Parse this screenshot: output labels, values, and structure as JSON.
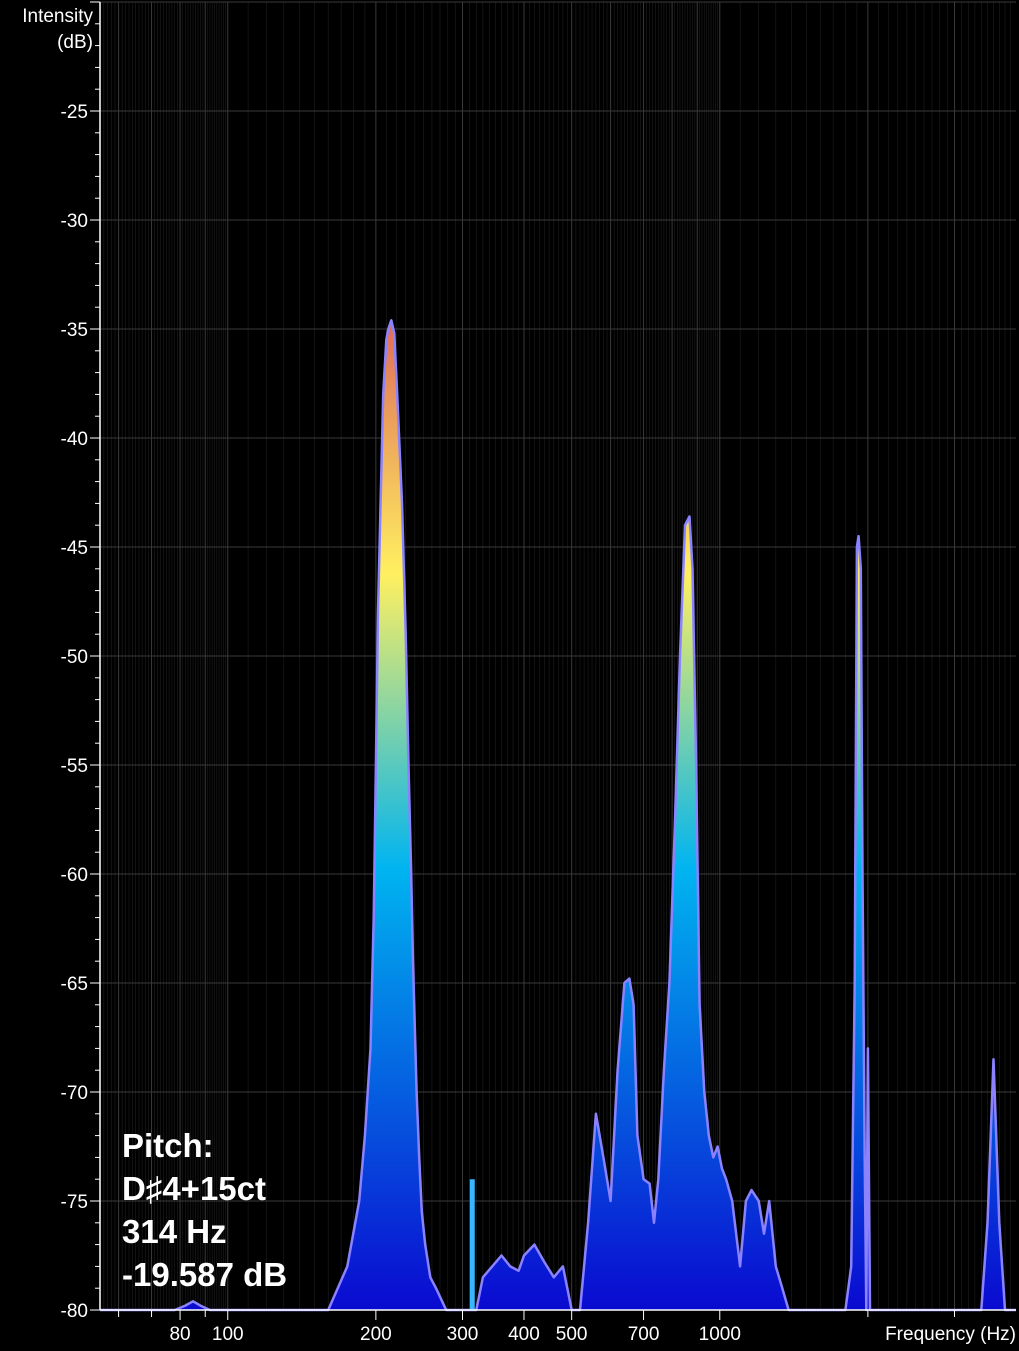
{
  "chart_data": {
    "type": "area",
    "title": "",
    "ylabel_line1": "Intensity",
    "ylabel_line2": "(dB)",
    "xlabel": "Frequency (Hz)",
    "x_scale": "log",
    "xlim": [
      55,
      4000
    ],
    "ylim": [
      -80,
      -20
    ],
    "yticks": [
      -25,
      -30,
      -35,
      -40,
      -45,
      -50,
      -55,
      -60,
      -65,
      -70,
      -75,
      -80
    ],
    "ytick_labels": [
      "-25",
      "-30",
      "-35",
      "-40",
      "-45",
      "-50",
      "-55",
      "-60",
      "-65",
      "-70",
      "-75",
      "-80"
    ],
    "xticks": [
      80,
      100,
      200,
      300,
      400,
      500,
      700,
      1000
    ],
    "xtick_labels": [
      "80",
      "100",
      "200",
      "300",
      "400",
      "500",
      "700",
      "1000"
    ],
    "pitch_marker": {
      "x": 314,
      "y": -74
    },
    "series": [
      {
        "x": [
          55,
          70,
          78,
          82,
          85,
          88,
          92,
          160,
          175,
          185,
          190,
          195,
          198,
          200,
          202,
          205,
          207,
          210,
          212,
          215,
          218,
          221,
          226,
          230,
          233,
          236,
          238,
          240,
          242,
          245,
          248,
          252,
          258,
          265,
          278,
          290,
          300,
          310,
          320,
          330,
          360,
          375,
          390,
          400,
          420,
          440,
          460,
          480,
          500,
          520,
          540,
          560,
          580,
          600,
          620,
          640,
          655,
          668,
          680,
          700,
          720,
          735,
          750,
          770,
          790,
          810,
          830,
          850,
          868,
          880,
          895,
          910,
          930,
          950,
          970,
          990,
          1010,
          1030,
          1060,
          1100,
          1130,
          1160,
          1200,
          1230,
          1260,
          1300,
          1340,
          1380,
          1400,
          1430,
          1470,
          1520,
          1600,
          1700,
          1800,
          1850,
          1880,
          1900,
          1915,
          1935,
          1950,
          1970,
          1985,
          2000,
          2020,
          2050,
          2100,
          2300,
          2600,
          2900,
          3200,
          3400,
          3500,
          3600,
          3700,
          3800,
          3900,
          4000
        ],
        "values": [
          -80,
          -80,
          -80,
          -79.8,
          -79.6,
          -79.8,
          -80,
          -80,
          -78,
          -75,
          -72,
          -68,
          -62,
          -55,
          -48,
          -42,
          -38,
          -35.5,
          -35,
          -34.6,
          -35.2,
          -38,
          -43,
          -49,
          -55,
          -60,
          -64,
          -67,
          -70,
          -73,
          -75.5,
          -77,
          -78.5,
          -79,
          -80,
          -80,
          -80,
          -80,
          -80,
          -78.5,
          -77.5,
          -78,
          -78.2,
          -77.5,
          -77,
          -77.8,
          -78.5,
          -78,
          -80,
          -80,
          -76,
          -71,
          -73,
          -75,
          -69,
          -65,
          -64.8,
          -66,
          -72,
          -74,
          -74.2,
          -76,
          -74,
          -69,
          -65,
          -58,
          -50,
          -44,
          -43.6,
          -46,
          -55,
          -66,
          -70,
          -72,
          -73,
          -72.5,
          -73.5,
          -74,
          -75,
          -78,
          -75,
          -74.5,
          -75,
          -76.5,
          -75,
          -78,
          -79,
          -80,
          -80,
          -80,
          -80,
          -80,
          -80,
          -80,
          -80,
          -78,
          -65,
          -45,
          -44.5,
          -46,
          -60,
          -73,
          -80,
          -68,
          -80,
          -80,
          -80,
          -80,
          -80,
          -80,
          -80,
          -80,
          -76,
          -68.5,
          -76,
          -80,
          -80,
          -80
        ]
      }
    ]
  },
  "readout": {
    "title": "Pitch:",
    "note": "D♯4+15ct",
    "frequency": "314 Hz",
    "level": "-19.587 dB"
  },
  "colors": {
    "background": "#000000",
    "grid": "#3a3a3a",
    "outline": "#8b82ff",
    "marker": "#38b6ff",
    "gradient_top": "#e0705a",
    "gradient_yellow": "#fff060",
    "gradient_cyan": "#00b4f0",
    "gradient_bottom": "#0a0ad0"
  }
}
